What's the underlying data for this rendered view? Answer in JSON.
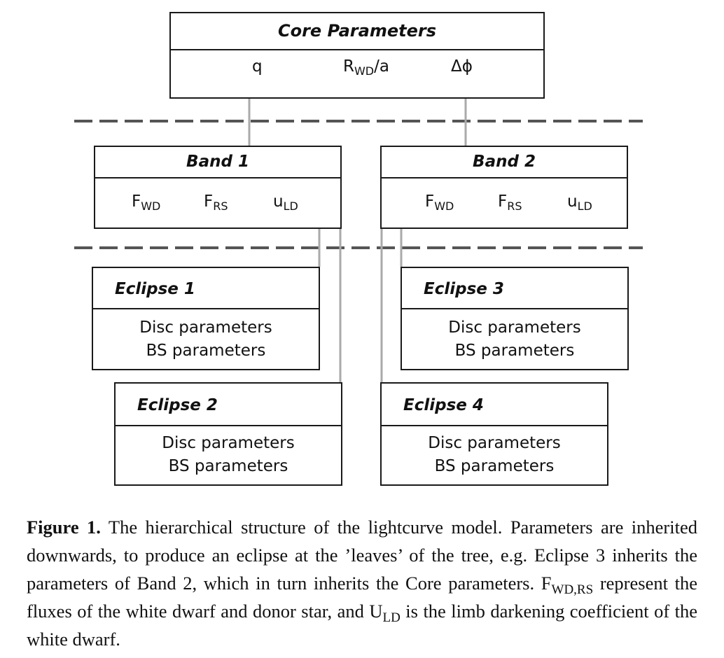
{
  "core": {
    "title": "Core Parameters",
    "params": [
      {
        "main": "q",
        "sub": "",
        "suffix": ""
      },
      {
        "main": "R",
        "sub": "WD",
        "suffix": "/a"
      },
      {
        "main": "Δϕ",
        "sub": "",
        "suffix": ""
      }
    ]
  },
  "bands": [
    {
      "title": "Band 1",
      "params": [
        {
          "main": "F",
          "sub": "WD"
        },
        {
          "main": "F",
          "sub": "RS"
        },
        {
          "main": "u",
          "sub": "LD"
        }
      ]
    },
    {
      "title": "Band 2",
      "params": [
        {
          "main": "F",
          "sub": "WD"
        },
        {
          "main": "F",
          "sub": "RS"
        },
        {
          "main": "u",
          "sub": "LD"
        }
      ]
    }
  ],
  "eclipses": [
    {
      "title": "Eclipse 1",
      "line1": "Disc parameters",
      "line2": "BS parameters"
    },
    {
      "title": "Eclipse 2",
      "line1": "Disc parameters",
      "line2": "BS parameters"
    },
    {
      "title": "Eclipse 3",
      "line1": "Disc parameters",
      "line2": "BS parameters"
    },
    {
      "title": "Eclipse 4",
      "line1": "Disc parameters",
      "line2": "BS parameters"
    }
  ],
  "caption": {
    "label": "Figure 1.",
    "part1": " The hierarchical structure of the lightcurve model. Parameters are inherited downwards, to produce an eclipse at the ’leaves’ of the tree, e.g. Eclipse 3 inherits the parameters of Band 2, which in turn inherits the Core parameters. F",
    "sub1": "WD,RS",
    "part2": " represent the fluxes of the white dwarf and donor star, and U",
    "sub2": "LD",
    "part3": " is the limb darkening coefficient of the white dwarf."
  }
}
